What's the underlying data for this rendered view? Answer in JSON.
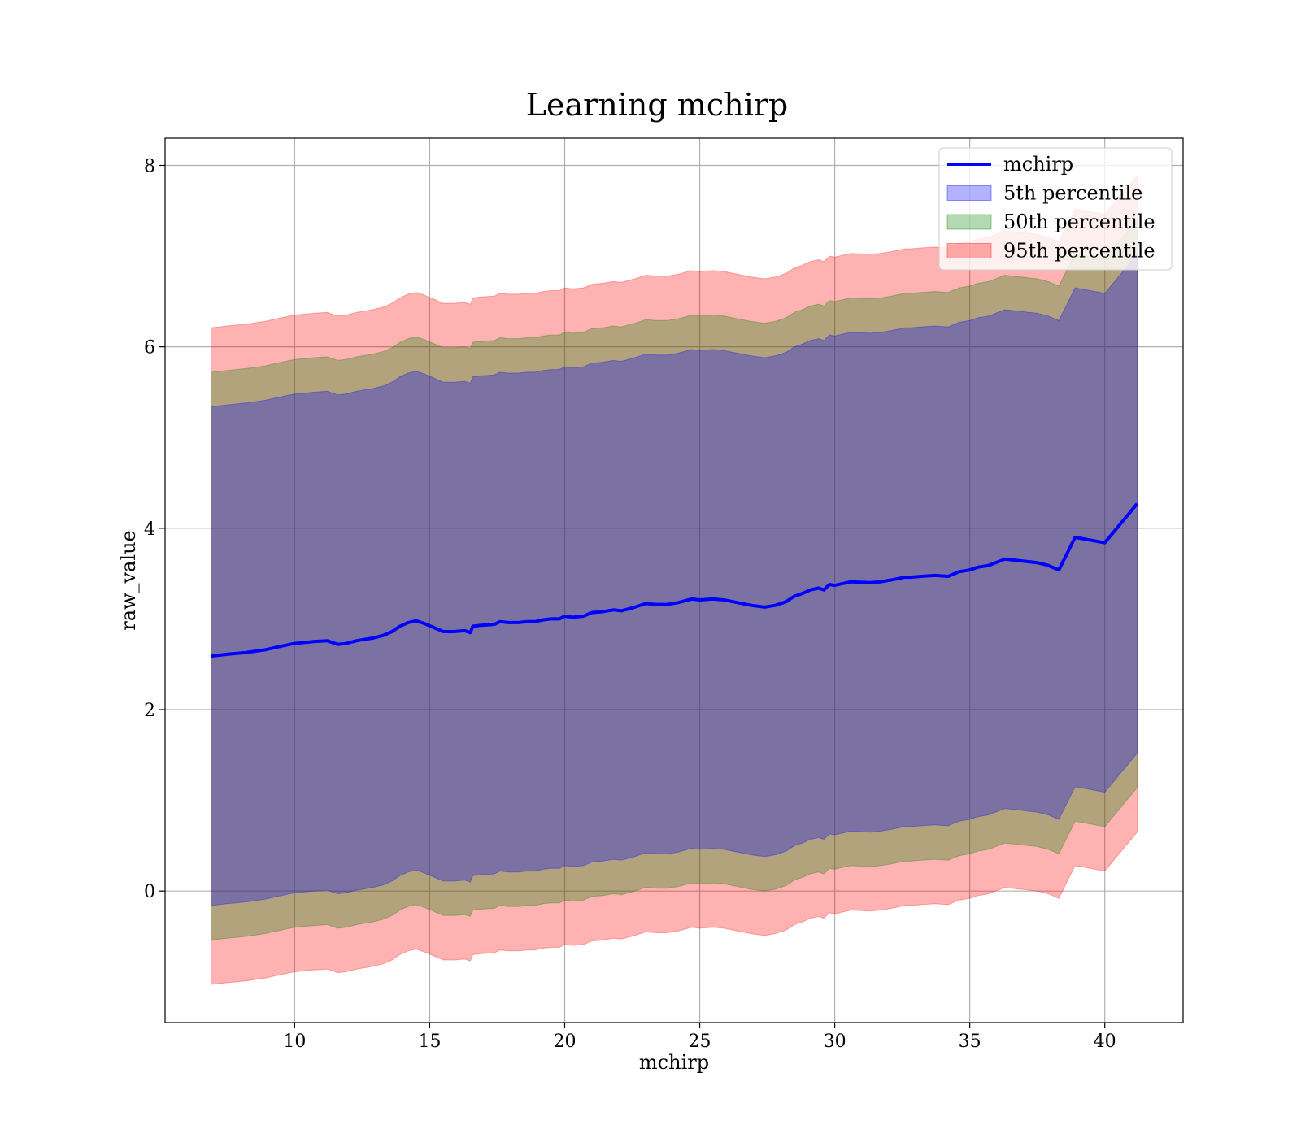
{
  "chart_data": {
    "type": "area",
    "title": "Learning mchirp",
    "xlabel": "mchirp",
    "ylabel": "raw_value",
    "xlim": [
      5.2,
      42.9
    ],
    "ylim": [
      -1.45,
      8.3
    ],
    "x_ticks": [
      10,
      15,
      20,
      25,
      30,
      35,
      40
    ],
    "y_ticks": [
      0,
      2,
      4,
      6,
      8
    ],
    "grid": true,
    "legend_position": "top-right",
    "line": {
      "name": "mchirp",
      "color": "#0000ff",
      "x": [
        6.9,
        7.5,
        8.2,
        8.9,
        9.5,
        10.0,
        10.7,
        11.2,
        11.6,
        11.9,
        12.3,
        12.9,
        13.3,
        13.6,
        13.9,
        14.2,
        14.5,
        14.8,
        15.2,
        15.5,
        15.9,
        16.3,
        16.5,
        16.6,
        16.9,
        17.4,
        17.6,
        17.9,
        18.3,
        18.6,
        18.9,
        19.2,
        19.5,
        19.8,
        20.0,
        20.3,
        20.7,
        21.0,
        21.4,
        21.8,
        22.1,
        22.6,
        23.0,
        23.4,
        23.8,
        24.2,
        24.7,
        25.0,
        25.5,
        25.9,
        26.4,
        26.9,
        27.4,
        27.8,
        28.2,
        28.5,
        28.8,
        29.1,
        29.4,
        29.6,
        29.8,
        30.0,
        30.6,
        31.3,
        31.7,
        32.1,
        32.6,
        32.8,
        33.2,
        33.7,
        34.2,
        34.6,
        35.0,
        35.3,
        35.7,
        36.3,
        36.9,
        37.5,
        37.9,
        38.3,
        38.9,
        40.0,
        41.2
      ],
      "y": [
        2.59,
        2.61,
        2.63,
        2.66,
        2.7,
        2.73,
        2.75,
        2.76,
        2.72,
        2.73,
        2.76,
        2.79,
        2.82,
        2.86,
        2.92,
        2.96,
        2.98,
        2.95,
        2.9,
        2.86,
        2.86,
        2.87,
        2.85,
        2.92,
        2.93,
        2.94,
        2.97,
        2.96,
        2.96,
        2.97,
        2.97,
        2.99,
        3.0,
        3.0,
        3.03,
        3.02,
        3.03,
        3.07,
        3.08,
        3.1,
        3.09,
        3.13,
        3.17,
        3.16,
        3.16,
        3.18,
        3.22,
        3.21,
        3.22,
        3.21,
        3.18,
        3.15,
        3.13,
        3.15,
        3.19,
        3.25,
        3.28,
        3.32,
        3.34,
        3.32,
        3.38,
        3.37,
        3.41,
        3.4,
        3.41,
        3.43,
        3.46,
        3.46,
        3.47,
        3.48,
        3.47,
        3.52,
        3.54,
        3.57,
        3.59,
        3.66,
        3.64,
        3.62,
        3.59,
        3.54,
        3.9,
        3.84,
        4.27
      ]
    },
    "series": [
      {
        "name": "5th percentile",
        "color": "#0000ff",
        "alpha": 0.3,
        "lower_offset": -2.75,
        "upper_offset": 2.75
      },
      {
        "name": "50th percentile",
        "color": "#008000",
        "alpha": 0.3,
        "lower_offset": -3.13,
        "upper_offset": 3.13
      },
      {
        "name": "95th percentile",
        "color": "#ff0000",
        "alpha": 0.3,
        "lower_offset": -3.62,
        "upper_offset": 3.62
      }
    ],
    "legend": [
      "mchirp",
      "5th percentile",
      "50th percentile",
      "95th percentile"
    ]
  }
}
